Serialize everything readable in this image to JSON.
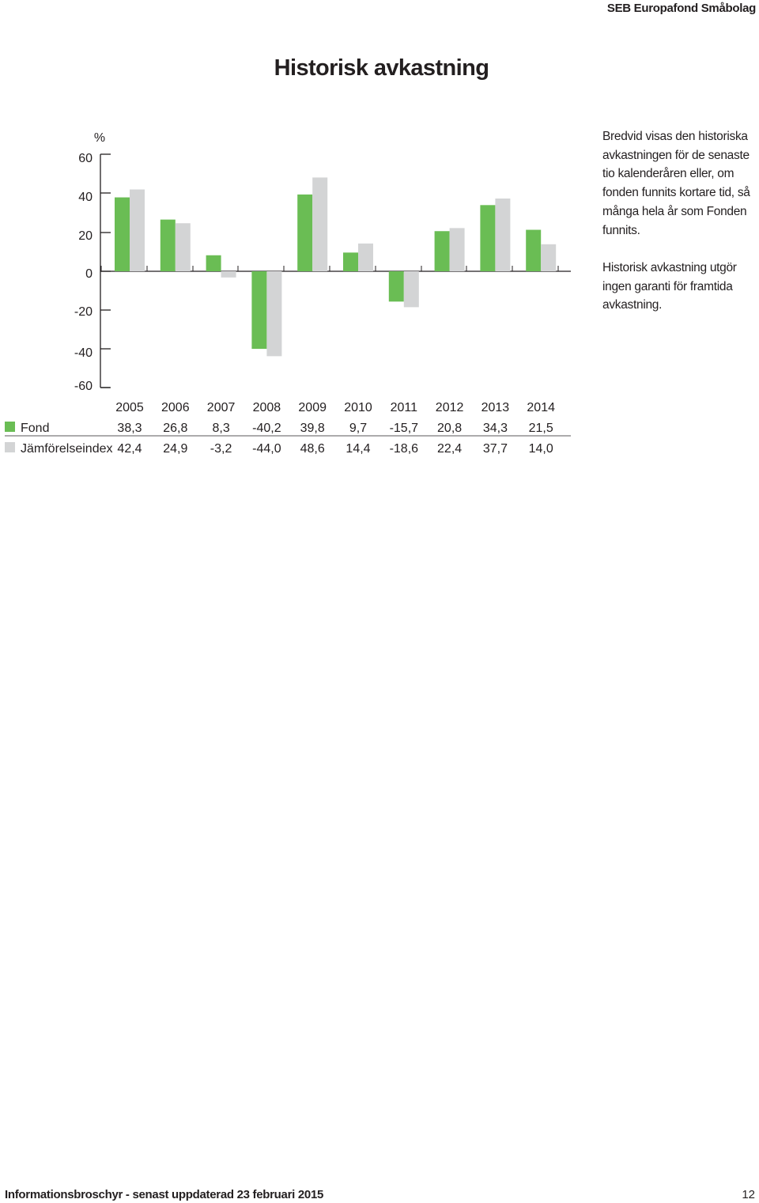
{
  "header": {
    "brand": "SEB Europafond Småbolag"
  },
  "title": "Historisk avkastning",
  "side_text": {
    "p1": "Bredvid visas den historiska avkastningen för de senaste tio kalenderåren eller, om fonden funnits kortare tid, så många hela år som Fonden funnits.",
    "p2": "Historisk avkastning utgör ingen garanti för framtida avkastning."
  },
  "chart_data": {
    "type": "bar",
    "unit_label": "%",
    "categories": [
      "2005",
      "2006",
      "2007",
      "2008",
      "2009",
      "2010",
      "2011",
      "2012",
      "2013",
      "2014"
    ],
    "series": [
      {
        "name": "Fond",
        "color": "#6abd54",
        "values": [
          38.3,
          26.8,
          8.3,
          -40.2,
          39.8,
          9.7,
          -15.7,
          20.8,
          34.3,
          21.5
        ],
        "labels": [
          "38,3",
          "26,8",
          "8,3",
          "-40,2",
          "39,8",
          "9,7",
          "-15,7",
          "20,8",
          "34,3",
          "21,5"
        ]
      },
      {
        "name": "Jämförelseindex",
        "color": "#d3d4d5",
        "values": [
          42.4,
          24.9,
          -3.2,
          -44.0,
          48.6,
          14.4,
          -18.6,
          22.4,
          37.7,
          14.0
        ],
        "labels": [
          "42,4",
          "24,9",
          "-3,2",
          "-44,0",
          "48,6",
          "14,4",
          "-18,6",
          "22,4",
          "37,7",
          "14,0"
        ]
      }
    ],
    "y_ticks": [
      {
        "value": 60,
        "label": "60"
      },
      {
        "value": 40,
        "label": "40"
      },
      {
        "value": 20,
        "label": "20"
      },
      {
        "value": 0,
        "label": "0"
      },
      {
        "value": -20,
        "label": "-20"
      },
      {
        "value": -40,
        "label": "-40"
      },
      {
        "value": -60,
        "label": "-60"
      }
    ],
    "ylim": [
      -60,
      60
    ],
    "grid": false,
    "legend": "table-below"
  },
  "footer": {
    "left": "Informationsbroschyr - senast uppdaterad 23 februari 2015",
    "page": "12"
  }
}
